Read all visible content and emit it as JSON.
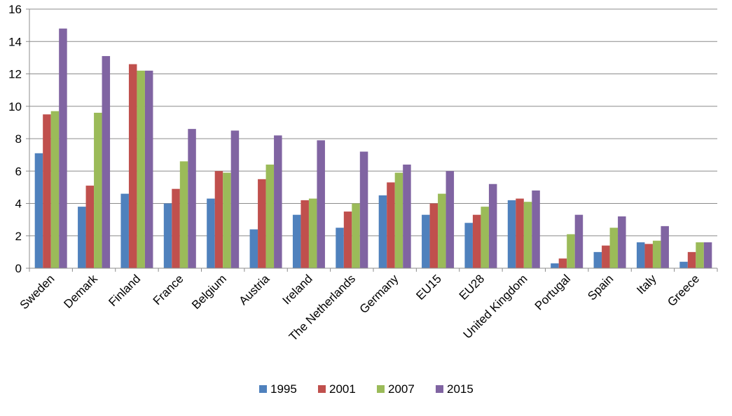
{
  "chart_data": {
    "type": "bar",
    "title": "",
    "xlabel": "",
    "ylabel": "",
    "ylim": [
      0,
      16
    ],
    "yticks": [
      0,
      2,
      4,
      6,
      8,
      10,
      12,
      14,
      16
    ],
    "grid": true,
    "legend_position": "bottom",
    "categories": [
      "Sweden",
      "Demark",
      "Finland",
      "France",
      "Belgium",
      "Austria",
      "Ireland",
      "The Netherlands",
      "Germany",
      "EU15",
      "EU28",
      "United Kingdom",
      "Portugal",
      "Spain",
      "Italy",
      "Greece"
    ],
    "series": [
      {
        "name": "1995",
        "color": "#4F81BD",
        "values": [
          7.1,
          3.8,
          4.6,
          4.0,
          4.3,
          2.4,
          3.3,
          2.5,
          4.5,
          3.3,
          2.8,
          4.2,
          0.3,
          1.0,
          1.6,
          0.4
        ]
      },
      {
        "name": "2001",
        "color": "#C0504D",
        "values": [
          9.5,
          5.1,
          12.6,
          4.9,
          6.0,
          5.5,
          4.2,
          3.5,
          5.3,
          4.0,
          3.3,
          4.3,
          0.6,
          1.4,
          1.5,
          1.0
        ]
      },
      {
        "name": "2007",
        "color": "#9BBB59",
        "values": [
          9.7,
          9.6,
          12.2,
          6.6,
          5.9,
          6.4,
          4.3,
          4.0,
          5.9,
          4.6,
          3.8,
          4.1,
          2.1,
          2.5,
          1.7,
          1.6
        ]
      },
      {
        "name": "2015",
        "color": "#8064A2",
        "values": [
          14.8,
          13.1,
          12.2,
          8.6,
          8.5,
          8.2,
          7.9,
          7.2,
          6.4,
          6.0,
          5.2,
          4.8,
          3.3,
          3.2,
          2.6,
          1.6
        ]
      }
    ]
  }
}
